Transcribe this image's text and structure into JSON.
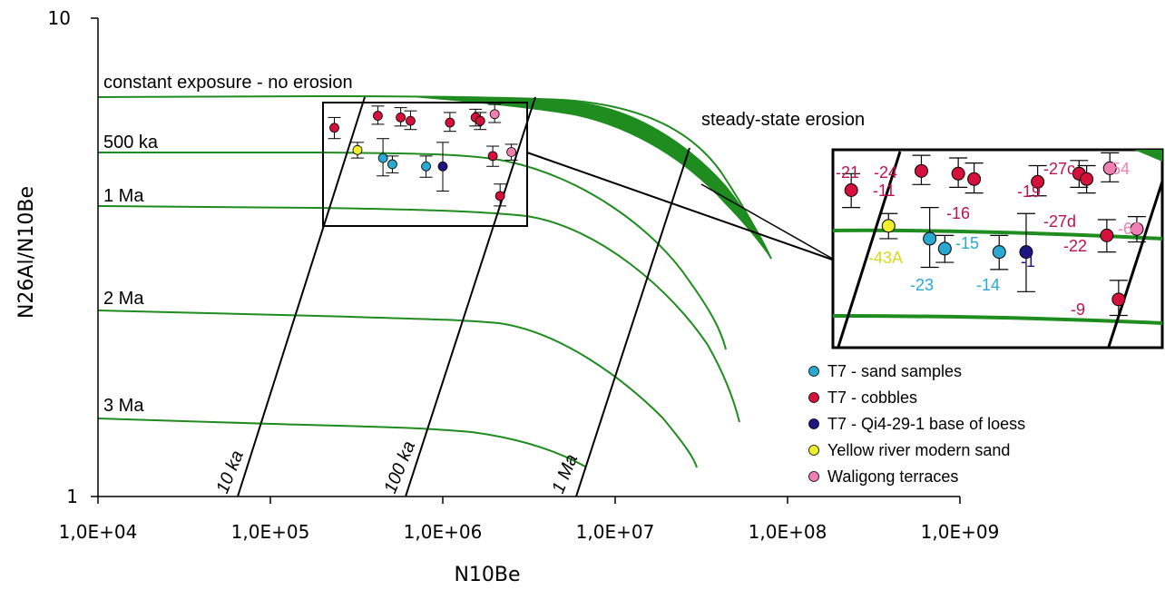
{
  "chart_data": {
    "type": "scatter",
    "title": "",
    "xlabel": "N10Be",
    "ylabel": "N26Al/N10Be",
    "x_scale": "log",
    "y_scale": "log",
    "xlim": [
      10000,
      1000000000
    ],
    "ylim": [
      1,
      10
    ],
    "x_tick_labels": [
      "1,0E+04",
      "1,0E+05",
      "1,0E+06",
      "1,0E+07",
      "1,0E+08",
      "1,0E+09"
    ],
    "y_tick_labels": [
      "1",
      "10"
    ],
    "grid": false,
    "legend_position": "bottom-right",
    "colors": {
      "sand": "#29a9cf",
      "cobbles": "#d4103b",
      "loess": "#1f1580",
      "yellow_river": "#f0f02a",
      "waligong": "#f07fb4",
      "curve": "#1e8c1e",
      "inset_sand_label": "#29a9cf",
      "inset_cobble_label": "#c0124a",
      "inset_loess_label": "#1f1580",
      "inset_yellow_label": "#d8d820",
      "inset_waligong_label": "#f07fb4"
    },
    "series": [
      {
        "name": "T7 - sand samples",
        "points": [
          {
            "x": 450000,
            "y": 5.1,
            "err_low": 0.42,
            "err_high": 0.5
          },
          {
            "x": 510000,
            "y": 4.95,
            "err_low": 0.2,
            "err_high": 0.2
          },
          {
            "x": 800000,
            "y": 4.9,
            "err_low": 0.25,
            "err_high": 0.25
          }
        ]
      },
      {
        "name": "T7 - cobbles",
        "points": [
          {
            "x": 235000,
            "y": 5.9,
            "err_low": 0.3,
            "err_high": 0.3
          },
          {
            "x": 420000,
            "y": 6.25,
            "err_low": 0.25,
            "err_high": 0.3
          },
          {
            "x": 570000,
            "y": 6.2,
            "err_low": 0.25,
            "err_high": 0.3
          },
          {
            "x": 650000,
            "y": 6.1,
            "err_low": 0.25,
            "err_high": 0.3
          },
          {
            "x": 1100000,
            "y": 6.05,
            "err_low": 0.25,
            "err_high": 0.3
          },
          {
            "x": 1550000,
            "y": 6.2,
            "err_low": 0.25,
            "err_high": 0.25
          },
          {
            "x": 1650000,
            "y": 6.1,
            "err_low": 0.25,
            "err_high": 0.25
          },
          {
            "x": 1950000,
            "y": 5.15,
            "err_low": 0.25,
            "err_high": 0.25
          },
          {
            "x": 2150000,
            "y": 4.25,
            "err_low": 0.2,
            "err_high": 0.25
          }
        ]
      },
      {
        "name": "T7 - Qi4-29-1 base of loess",
        "points": [
          {
            "x": 1000000,
            "y": 4.9,
            "err_low": 0.55,
            "err_high": 0.6
          }
        ]
      },
      {
        "name": "Yellow river modern sand",
        "points": [
          {
            "x": 320000,
            "y": 5.3,
            "err_low": 0.2,
            "err_high": 0.2
          }
        ]
      },
      {
        "name": "Waligong terraces",
        "points": [
          {
            "x": 2000000,
            "y": 6.3,
            "err_low": 0.25,
            "err_high": 0.3
          },
          {
            "x": 2500000,
            "y": 5.25,
            "err_low": 0.2,
            "err_high": 0.2
          }
        ]
      }
    ],
    "curves": [
      {
        "label": "constant exposure - no erosion"
      },
      {
        "label": "500 ka"
      },
      {
        "label": "1 Ma"
      },
      {
        "label": "2 Ma"
      },
      {
        "label": "3 Ma"
      }
    ],
    "isolines": [
      {
        "label": "10 ka"
      },
      {
        "label": "100 ka"
      },
      {
        "label": "1 Ma"
      }
    ],
    "annotations": [
      "steady-state erosion"
    ],
    "inset": {
      "sample_labels": [
        {
          "text": "-21",
          "group": "cobble"
        },
        {
          "text": "-24",
          "group": "cobble"
        },
        {
          "text": "-11",
          "group": "cobble"
        },
        {
          "text": "-16",
          "group": "cobble"
        },
        {
          "text": "-19",
          "group": "cobble"
        },
        {
          "text": "-27c",
          "group": "cobble"
        },
        {
          "text": "-27d",
          "group": "cobble"
        },
        {
          "text": "-22",
          "group": "cobble"
        },
        {
          "text": "-9",
          "group": "cobble"
        },
        {
          "text": "-43A",
          "group": "yellow"
        },
        {
          "text": "-15",
          "group": "sand"
        },
        {
          "text": "-23",
          "group": "sand"
        },
        {
          "text": "-14",
          "group": "sand"
        },
        {
          "text": "-1",
          "group": "loess"
        },
        {
          "text": "-54",
          "group": "waligong"
        },
        {
          "text": "-62",
          "group": "waligong"
        }
      ]
    },
    "legend": [
      {
        "label": "T7 - sand samples",
        "color_key": "sand"
      },
      {
        "label": "T7 - cobbles",
        "color_key": "cobbles"
      },
      {
        "label": "T7 - Qi4-29-1 base of loess",
        "color_key": "loess"
      },
      {
        "label": "Yellow river modern sand",
        "color_key": "yellow_river"
      },
      {
        "label": "Waligong terraces",
        "color_key": "waligong"
      }
    ]
  }
}
